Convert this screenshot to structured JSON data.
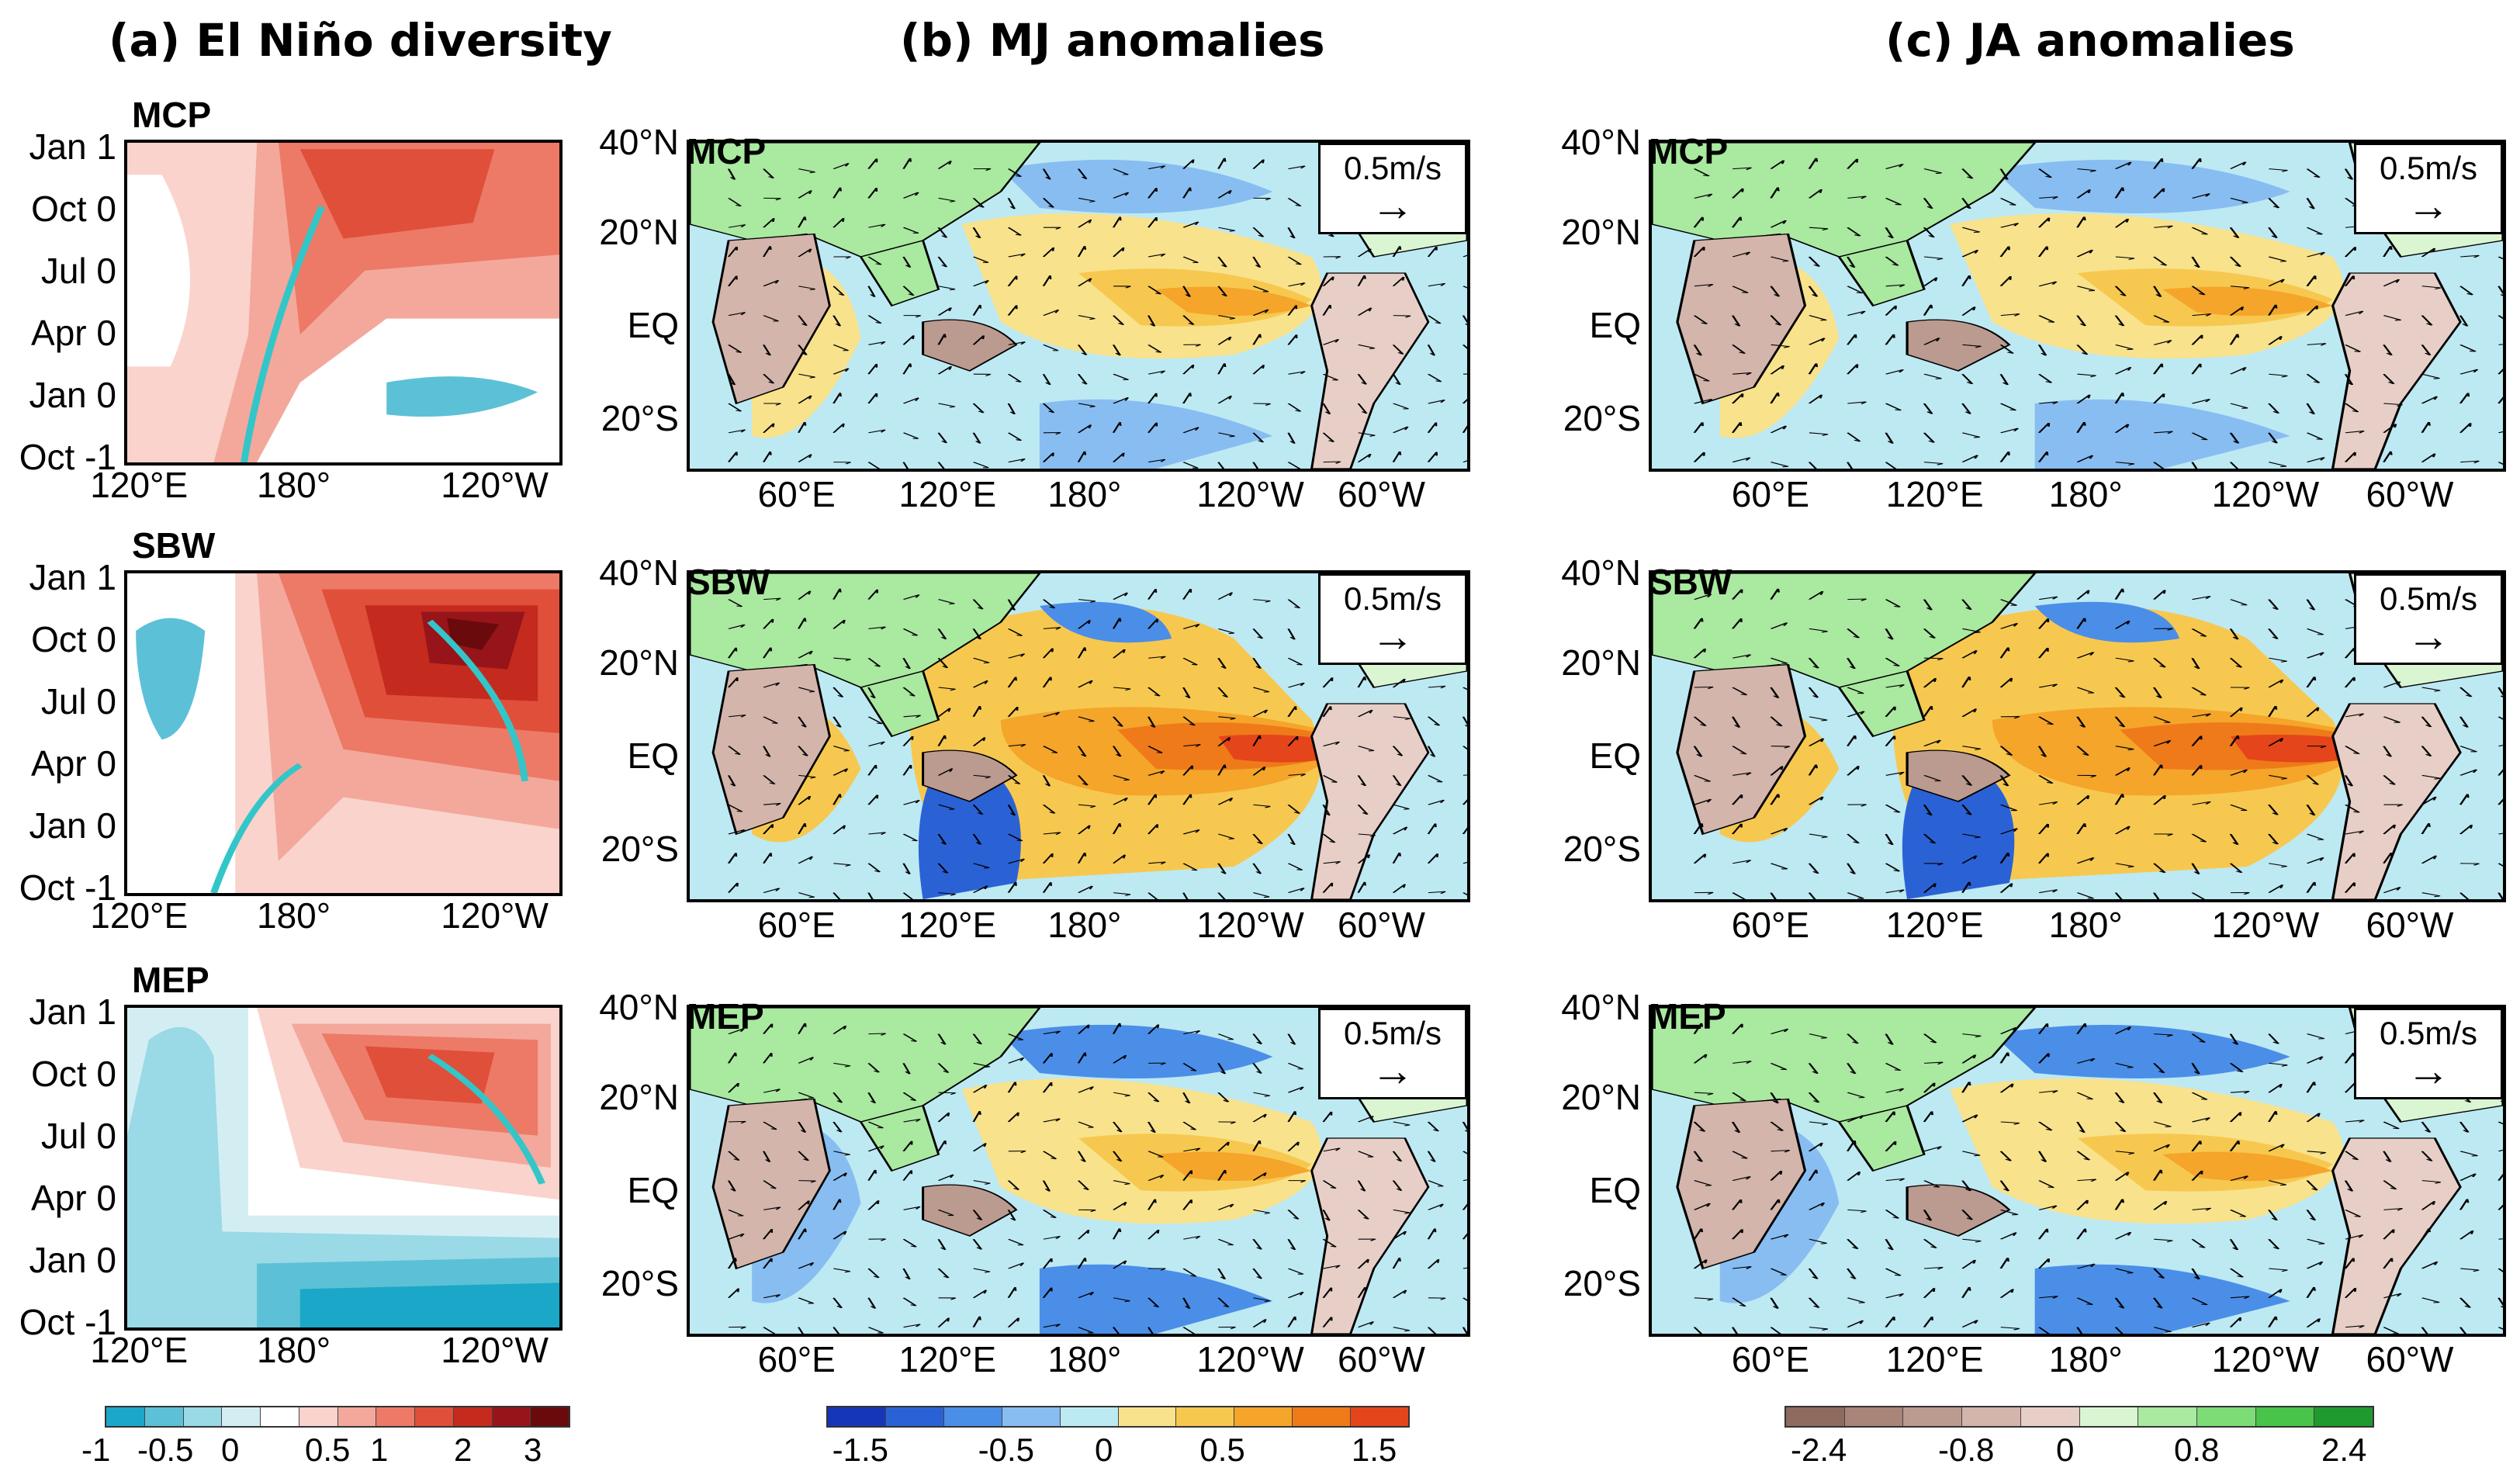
{
  "titles": {
    "a": "(a) El Niño diversity",
    "b": "(b) MJ anomalies",
    "c": "(c) JA anomalies"
  },
  "rows": [
    "MCP",
    "SBW",
    "MEP"
  ],
  "hovmoller": {
    "y_ticks": [
      "Jan 1",
      "Oct 0",
      "Jul 0",
      "Apr 0",
      "Jan 0",
      "Oct -1"
    ],
    "x_ticks": [
      "120°E",
      "180°",
      "120°W"
    ]
  },
  "map": {
    "y_ticks": [
      "40°N",
      "20°N",
      "EQ",
      "20°S"
    ],
    "x_ticks": [
      "60°E",
      "120°E",
      "180°",
      "120°W",
      "60°W"
    ],
    "ref_vector": "0.5m/s"
  },
  "colorbars": {
    "a": {
      "labels": [
        "-1",
        "-0.5",
        "0",
        "0.5",
        "1",
        "2",
        "3"
      ],
      "colors": [
        "#1ba7c7",
        "#5cc1d6",
        "#9ad9e6",
        "#d3eef3",
        "#ffffff",
        "#f9d3cc",
        "#f3a89b",
        "#ec7a66",
        "#e04f39",
        "#c52a1f",
        "#96141a",
        "#6a0a0d"
      ]
    },
    "b": {
      "labels": [
        "-1.5",
        "-0.5",
        "0",
        "0.5",
        "1.5"
      ],
      "colors": [
        "#1636b9",
        "#2a62d6",
        "#4b8ee8",
        "#88bdf2",
        "#bde9f3",
        "#f9e28c",
        "#f7c84f",
        "#f4a52a",
        "#ef7a1a",
        "#e5451a"
      ]
    },
    "c": {
      "labels": [
        "-2.4",
        "-0.8",
        "0",
        "0.8",
        "2.4"
      ],
      "colors": [
        "#8f6a5e",
        "#a88578",
        "#bb9a8f",
        "#d3b5ab",
        "#e7cfc7",
        "#d9f5d2",
        "#a9e9a0",
        "#7ddc76",
        "#49c34a",
        "#1f9a2e"
      ]
    }
  }
}
